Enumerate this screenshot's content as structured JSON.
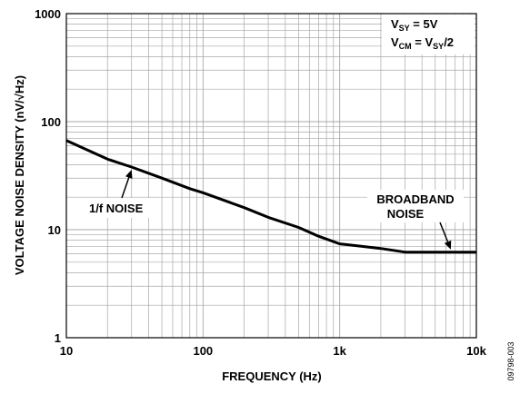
{
  "chart_data": {
    "type": "line",
    "xlabel": "FREQUENCY (Hz)",
    "ylabel": "VOLTAGE NOISE DENSITY (nV/√Hz)",
    "x_scale": "log",
    "y_scale": "log",
    "xlim": [
      10,
      10000
    ],
    "ylim": [
      1,
      1000
    ],
    "grid": true,
    "x_ticks": [
      {
        "value": 10,
        "label": "10"
      },
      {
        "value": 100,
        "label": "100"
      },
      {
        "value": 1000,
        "label": "1k"
      },
      {
        "value": 10000,
        "label": "10k"
      }
    ],
    "y_ticks": [
      {
        "value": 1,
        "label": "1"
      },
      {
        "value": 10,
        "label": "10"
      },
      {
        "value": 100,
        "label": "100"
      },
      {
        "value": 1000,
        "label": "1000"
      }
    ],
    "series": [
      {
        "color": "#000000",
        "x": [
          10,
          20,
          30,
          50,
          80,
          100,
          200,
          300,
          500,
          700,
          1000,
          2000,
          3000,
          5000,
          10000
        ],
        "y": [
          67,
          45,
          38,
          30,
          24,
          22,
          16,
          13,
          10.5,
          8.7,
          7.4,
          6.7,
          6.2,
          6.2,
          6.2
        ]
      }
    ],
    "legend": {
      "vsy_label": "V",
      "vsy_sub": "SY",
      "vsy_value": " = 5V",
      "vcm_label": "V",
      "vcm_sub": "CM",
      "vcm_eq": " = V",
      "vcm_sub2": "SY",
      "vcm_value": "/2"
    },
    "annotations": [
      {
        "text": "1/f NOISE",
        "points_to": {
          "x": 30,
          "y": 38
        }
      },
      {
        "text_lines": [
          "BROADBAND",
          "NOISE"
        ],
        "points_to": {
          "x": 6500,
          "y": 6.2
        }
      }
    ],
    "figure_id": "09798-003"
  }
}
